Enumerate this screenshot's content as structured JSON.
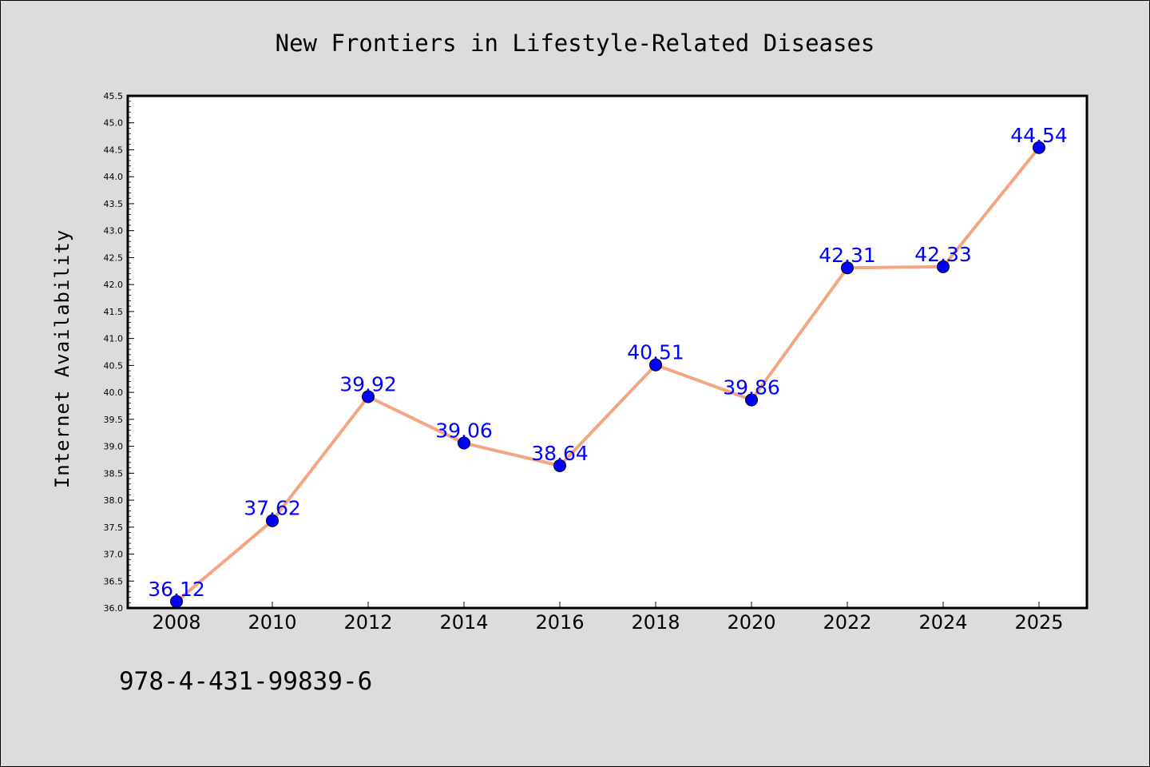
{
  "chart_data": {
    "type": "line",
    "title": "New Frontiers in Lifestyle-Related Diseases",
    "xlabel": "",
    "ylabel": "Internet Availability",
    "categories": [
      "2008",
      "2010",
      "2012",
      "2014",
      "2016",
      "2018",
      "2020",
      "2022",
      "2024",
      "2025"
    ],
    "values": [
      36.12,
      37.62,
      39.92,
      39.06,
      38.64,
      40.51,
      39.86,
      42.31,
      42.33,
      44.54
    ],
    "data_labels": [
      "36.12",
      "37.62",
      "39.92",
      "39.06",
      "38.64",
      "40.51",
      "39.86",
      "42.31",
      "42.33",
      "44.54"
    ],
    "ylim": [
      36.0,
      45.5
    ],
    "yticks": [
      "36.0",
      "36.5",
      "37.0",
      "37.5",
      "38.0",
      "38.5",
      "39.0",
      "39.5",
      "40.0",
      "40.5",
      "41.0",
      "41.5",
      "42.0",
      "42.5",
      "43.0",
      "43.5",
      "44.0",
      "44.5",
      "45.0",
      "45.5"
    ],
    "grid": false,
    "line_color": "#f4a582",
    "marker_color": "#0000ff",
    "label_color": "#0000ff",
    "background_color": "#dcdcdc",
    "plot_background": "#ffffff"
  },
  "footnote": "978-4-431-99839-6"
}
